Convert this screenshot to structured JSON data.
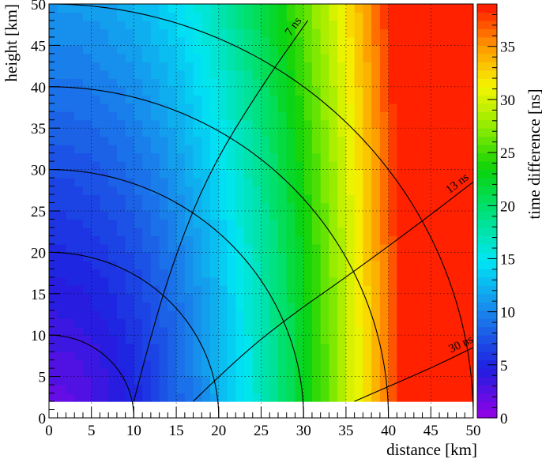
{
  "chart_data": {
    "type": "heatmap",
    "title": "",
    "xlabel": "distance [km]",
    "ylabel": "height [km]",
    "zlabel": "time difference [ns]",
    "xlim": [
      0,
      50
    ],
    "ylim": [
      0,
      50
    ],
    "zlim": [
      0,
      39
    ],
    "grid": true,
    "x_ticks": [
      "0",
      "5",
      "10",
      "15",
      "20",
      "25",
      "30",
      "35",
      "40",
      "45",
      "50"
    ],
    "y_ticks": [
      "0",
      "5",
      "10",
      "15",
      "20",
      "25",
      "30",
      "35",
      "40",
      "45",
      "50"
    ],
    "z_ticks": [
      "0",
      "5",
      "10",
      "15",
      "20",
      "25",
      "30",
      "35"
    ],
    "data_region": {
      "x_min": 0,
      "x_max": 50,
      "y_min": 2,
      "y_max": 50
    },
    "cell_size": {
      "x": 1,
      "y": 1
    },
    "distance_circles": [
      10,
      20,
      30,
      40,
      50
    ],
    "contours": [
      {
        "label": "7 ns",
        "points": [
          [
            10,
            2
          ],
          [
            12,
            10
          ],
          [
            15,
            20
          ],
          [
            19,
            30
          ],
          [
            25,
            40
          ],
          [
            30.5,
            48
          ]
        ]
      },
      {
        "label": "13 ns",
        "points": [
          [
            17,
            2
          ],
          [
            22,
            7
          ],
          [
            28,
            12
          ],
          [
            35,
            17
          ],
          [
            43,
            23
          ],
          [
            50,
            28.5
          ]
        ]
      },
      {
        "label": "30 ns",
        "points": [
          [
            36,
            2
          ],
          [
            40,
            3.8
          ],
          [
            45,
            6
          ],
          [
            50,
            8.5
          ]
        ]
      }
    ]
  }
}
